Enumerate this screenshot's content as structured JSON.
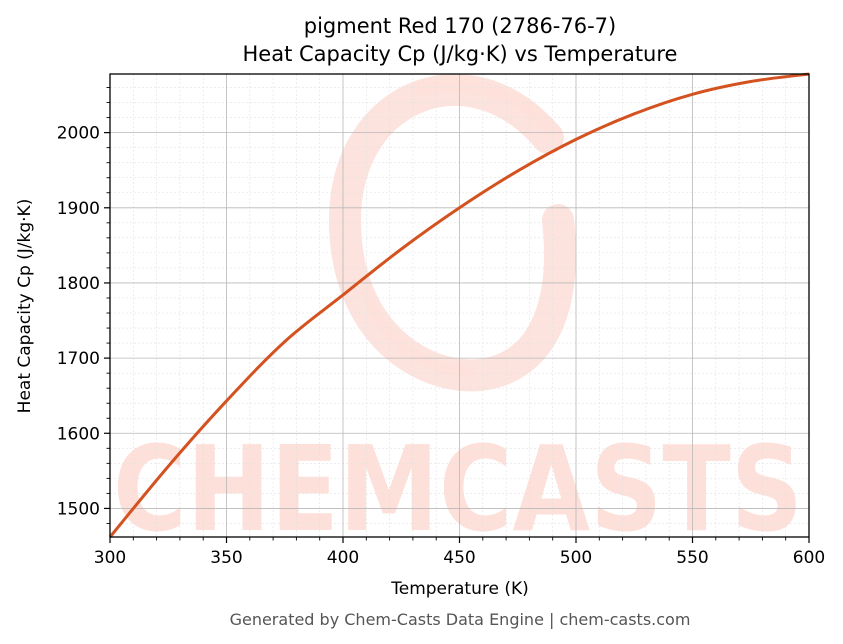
{
  "chart_data": {
    "type": "line",
    "title": "pigment Red 170 (2786-76-7)",
    "subtitle": "Heat Capacity Cp (J/kg·K) vs Temperature",
    "xlabel": "Temperature (K)",
    "ylabel": "Heat Capacity Cp (J/kg·K)",
    "xlim": [
      300,
      600
    ],
    "ylim": [
      1462,
      2078
    ],
    "xticks": [
      300,
      350,
      400,
      450,
      500,
      550,
      600
    ],
    "yticks": [
      1500,
      1600,
      1700,
      1800,
      1900,
      2000
    ],
    "grid": true,
    "series": [
      {
        "name": "",
        "color": "#d4521f",
        "x": [
          300,
          325,
          350,
          375,
          400,
          425,
          450,
          475,
          500,
          525,
          550,
          575,
          600
        ],
        "y": [
          1462,
          1556,
          1643,
          1722,
          1784,
          1845,
          1900,
          1949,
          1991,
          2025,
          2051,
          2068,
          2078
        ]
      }
    ]
  },
  "watermark": {
    "text": "CHEMCASTS",
    "color": "#fde0d9"
  },
  "footer": "Generated by Chem-Casts Data Engine | chem-casts.com"
}
